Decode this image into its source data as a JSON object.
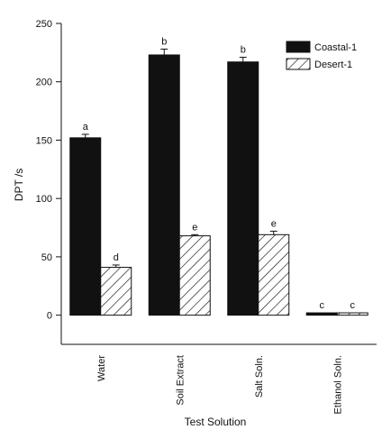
{
  "chart_data": {
    "type": "bar",
    "xlabel": "Test Solution",
    "ylabel": "DPT /s",
    "ylim": [
      -25,
      250
    ],
    "yticks": [
      0,
      50,
      100,
      150,
      200,
      250
    ],
    "categories": [
      "Water",
      "Soil Extract",
      "Salt Soln.",
      "Ethanol Soln."
    ],
    "legend_position": "top-right",
    "series": [
      {
        "name": "Coastal-1",
        "fill": "solid",
        "color": "#111111",
        "values": [
          152,
          223,
          217,
          2
        ],
        "errors": [
          3,
          5,
          4,
          0
        ],
        "labels": [
          "a",
          "b",
          "b",
          "c"
        ]
      },
      {
        "name": "Desert-1",
        "fill": "diagonal-hatch",
        "color": "#111111",
        "values": [
          41,
          68,
          69,
          2
        ],
        "errors": [
          2,
          1,
          3,
          0
        ],
        "labels": [
          "d",
          "e",
          "e",
          "c"
        ]
      }
    ]
  }
}
